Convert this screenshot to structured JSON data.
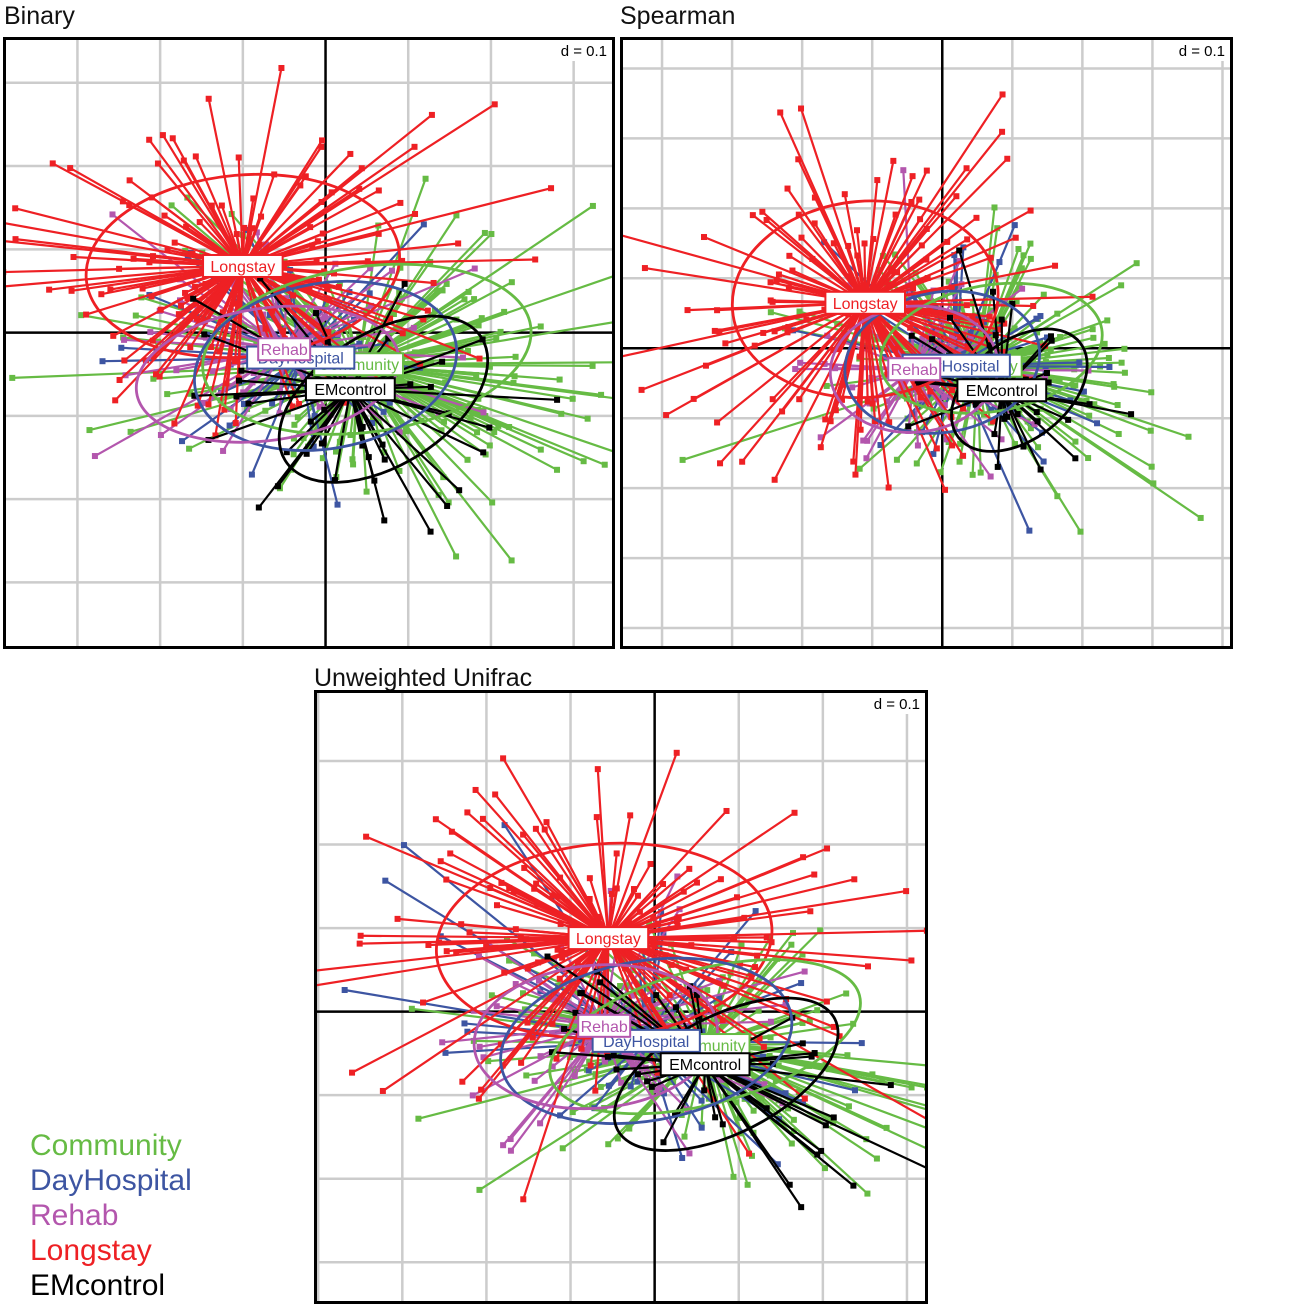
{
  "chart_data": [
    {
      "type": "scatter",
      "title": "Binary",
      "scale_label": "d = 0.1",
      "grid": true,
      "xlim": [
        -0.39,
        0.35
      ],
      "ylim": [
        -0.38,
        0.355
      ],
      "centroids": [
        {
          "group": "Community",
          "x": 0.04,
          "y": -0.038
        },
        {
          "group": "DayHospital",
          "x": -0.03,
          "y": -0.03
        },
        {
          "group": "Rehab",
          "x": -0.05,
          "y": -0.02
        },
        {
          "group": "Longstay",
          "x": -0.1,
          "y": 0.08
        },
        {
          "group": "EMcontrol",
          "x": 0.03,
          "y": -0.068
        }
      ],
      "ellipses": [
        {
          "group": "Longstay",
          "cx": -0.1,
          "cy": 0.08,
          "rx": 0.19,
          "ry": 0.11,
          "angle": -5
        },
        {
          "group": "Community",
          "cx": 0.05,
          "cy": -0.02,
          "rx": 0.2,
          "ry": 0.1,
          "angle": -8
        },
        {
          "group": "DayHospital",
          "cx": 0.0,
          "cy": -0.04,
          "rx": 0.16,
          "ry": 0.1,
          "angle": -10
        },
        {
          "group": "Rehab",
          "cx": -0.07,
          "cy": -0.05,
          "rx": 0.16,
          "ry": 0.08,
          "angle": -8
        },
        {
          "group": "EMcontrol",
          "cx": 0.07,
          "cy": -0.08,
          "rx": 0.14,
          "ry": 0.08,
          "angle": -32
        }
      ]
    },
    {
      "type": "scatter",
      "title": "Spearman",
      "scale_label": "d = 0.1",
      "grid": true,
      "xlim": [
        -0.46,
        0.415
      ],
      "ylim": [
        -0.43,
        0.445
      ],
      "centroids": [
        {
          "group": "Community",
          "x": 0.05,
          "y": -0.025
        },
        {
          "group": "DayHospital",
          "x": 0.02,
          "y": -0.025
        },
        {
          "group": "Rehab",
          "x": -0.04,
          "y": -0.03
        },
        {
          "group": "Longstay",
          "x": -0.11,
          "y": 0.065
        },
        {
          "group": "EMcontrol",
          "x": 0.085,
          "y": -0.06
        }
      ],
      "ellipses": [
        {
          "group": "Longstay",
          "cx": -0.11,
          "cy": 0.07,
          "rx": 0.19,
          "ry": 0.14,
          "angle": -5
        },
        {
          "group": "Community",
          "cx": 0.07,
          "cy": 0.0,
          "rx": 0.16,
          "ry": 0.09,
          "angle": -10
        },
        {
          "group": "DayHospital",
          "cx": 0.0,
          "cy": -0.02,
          "rx": 0.14,
          "ry": 0.1,
          "angle": -10
        },
        {
          "group": "Rehab",
          "cx": -0.04,
          "cy": -0.03,
          "rx": 0.12,
          "ry": 0.09,
          "angle": -5
        },
        {
          "group": "EMcontrol",
          "cx": 0.11,
          "cy": -0.06,
          "rx": 0.11,
          "ry": 0.07,
          "angle": -38
        }
      ]
    },
    {
      "type": "scatter",
      "title": "Unweighted Unifrac",
      "scale_label": "d = 0.1",
      "grid": true,
      "xlim": [
        -0.405,
        0.325
      ],
      "ylim": [
        -0.35,
        0.385
      ],
      "centroids": [
        {
          "group": "Community",
          "x": 0.06,
          "y": -0.04
        },
        {
          "group": "DayHospital",
          "x": -0.01,
          "y": -0.035
        },
        {
          "group": "Rehab",
          "x": -0.06,
          "y": -0.017
        },
        {
          "group": "Longstay",
          "x": -0.055,
          "y": 0.088
        },
        {
          "group": "EMcontrol",
          "x": 0.06,
          "y": -0.063
        }
      ],
      "ellipses": [
        {
          "group": "Longstay",
          "cx": -0.06,
          "cy": 0.085,
          "rx": 0.2,
          "ry": 0.115,
          "angle": -5
        },
        {
          "group": "Community",
          "cx": 0.06,
          "cy": -0.03,
          "rx": 0.19,
          "ry": 0.08,
          "angle": -15
        },
        {
          "group": "DayHospital",
          "cx": -0.01,
          "cy": -0.035,
          "rx": 0.175,
          "ry": 0.095,
          "angle": -10
        },
        {
          "group": "Rehab",
          "cx": -0.07,
          "cy": -0.03,
          "rx": 0.145,
          "ry": 0.085,
          "angle": -5
        },
        {
          "group": "EMcontrol",
          "cx": 0.085,
          "cy": -0.075,
          "rx": 0.145,
          "ry": 0.07,
          "angle": -27
        }
      ]
    }
  ],
  "groups": [
    {
      "name": "Community",
      "color": "#66bb44"
    },
    {
      "name": "DayHospital",
      "color": "#3d55a2"
    },
    {
      "name": "Rehab",
      "color": "#b356ad"
    },
    {
      "name": "Longstay",
      "color": "#ee2024"
    },
    {
      "name": "EMcontrol",
      "color": "#000000"
    }
  ],
  "legend": {
    "position": "bottom-left",
    "items": [
      "Community",
      "DayHospital",
      "Rehab",
      "Longstay",
      "EMcontrol"
    ]
  }
}
